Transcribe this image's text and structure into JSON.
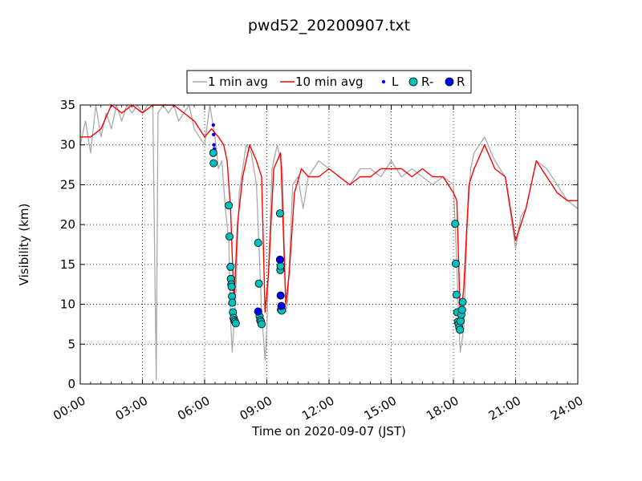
{
  "chart_data": {
    "type": "line",
    "title": "pwd52_20200907.txt",
    "xlabel": "Time on 2020-09-07 (JST)",
    "ylabel": "Visibility (km)",
    "xlim": [
      "00:00",
      "24:00"
    ],
    "ylim": [
      0,
      35
    ],
    "x_ticks": [
      "00:00",
      "03:00",
      "06:00",
      "09:00",
      "12:00",
      "15:00",
      "18:00",
      "21:00",
      "24:00"
    ],
    "y_ticks": [
      0,
      5,
      10,
      15,
      20,
      25,
      30,
      35
    ],
    "grid": true,
    "legend_placement": "top-center, outside plot",
    "series": [
      {
        "name": "1 min avg",
        "style": "line",
        "color": "#a9a9a9",
        "x": [
          "00:00",
          "00:15",
          "00:30",
          "00:45",
          "01:00",
          "01:15",
          "01:30",
          "01:45",
          "02:00",
          "02:15",
          "02:30",
          "02:45",
          "03:00",
          "03:15",
          "03:30",
          "03:40",
          "03:45",
          "04:00",
          "04:15",
          "04:30",
          "04:45",
          "05:00",
          "05:15",
          "05:30",
          "05:45",
          "06:00",
          "06:15",
          "06:30",
          "06:40",
          "06:50",
          "07:00",
          "07:10",
          "07:15",
          "07:20",
          "07:30",
          "07:40",
          "07:50",
          "08:00",
          "08:15",
          "08:30",
          "08:45",
          "08:55",
          "09:00",
          "09:05",
          "09:15",
          "09:30",
          "09:45",
          "09:55",
          "10:00",
          "10:05",
          "10:15",
          "10:30",
          "10:45",
          "11:00",
          "11:30",
          "12:00",
          "12:30",
          "13:00",
          "13:30",
          "14:00",
          "14:30",
          "15:00",
          "15:30",
          "16:00",
          "16:30",
          "17:00",
          "17:30",
          "18:00",
          "18:10",
          "18:15",
          "18:20",
          "18:30",
          "18:40",
          "18:50",
          "19:00",
          "19:30",
          "20:00",
          "20:30",
          "21:00",
          "21:15",
          "21:30",
          "22:00",
          "22:30",
          "23:00",
          "23:30",
          "24:00"
        ],
        "y": [
          30,
          33,
          29,
          35,
          31,
          34,
          32,
          35,
          33,
          35,
          34,
          35,
          34,
          35,
          35,
          0.5,
          34,
          35,
          34,
          35,
          33,
          34,
          35,
          32,
          31,
          30,
          35,
          31,
          27,
          28,
          22,
          18,
          8,
          4,
          11,
          24,
          27,
          30,
          29,
          25,
          9,
          3,
          7,
          15,
          27,
          30,
          27,
          9,
          10,
          15,
          25,
          26,
          22,
          26,
          28,
          27,
          26,
          25,
          27,
          27,
          26,
          28,
          26,
          27,
          26,
          25,
          26,
          25,
          15,
          8,
          4,
          7,
          20,
          27,
          29,
          31,
          28,
          26,
          17,
          21,
          22,
          28,
          27,
          25,
          23,
          22
        ]
      },
      {
        "name": "10 min avg",
        "style": "line",
        "color": "#ff0000",
        "x": [
          "00:00",
          "00:30",
          "01:00",
          "01:30",
          "02:00",
          "02:30",
          "03:00",
          "03:30",
          "04:00",
          "04:30",
          "05:00",
          "05:30",
          "06:00",
          "06:20",
          "06:40",
          "06:55",
          "07:05",
          "07:15",
          "07:25",
          "07:35",
          "07:50",
          "08:10",
          "08:30",
          "08:45",
          "08:55",
          "09:05",
          "09:20",
          "09:40",
          "09:55",
          "10:05",
          "10:20",
          "10:40",
          "11:00",
          "11:30",
          "12:00",
          "12:30",
          "13:00",
          "13:30",
          "14:00",
          "14:30",
          "15:00",
          "15:30",
          "16:00",
          "16:30",
          "17:00",
          "17:30",
          "18:00",
          "18:10",
          "18:20",
          "18:30",
          "18:45",
          "19:00",
          "19:30",
          "20:00",
          "20:30",
          "21:00",
          "21:15",
          "21:30",
          "22:00",
          "22:30",
          "23:00",
          "23:30",
          "24:00"
        ],
        "y": [
          31,
          31,
          32,
          35,
          34,
          35,
          34,
          35,
          35,
          35,
          34,
          33,
          31,
          32,
          31,
          30,
          28,
          22,
          10,
          20,
          26,
          30,
          28,
          26,
          9,
          14,
          27,
          29,
          10,
          14,
          24,
          27,
          26,
          26,
          27,
          26,
          25,
          26,
          26,
          27,
          27,
          27,
          26,
          27,
          26,
          26,
          24,
          23,
          8,
          12,
          25,
          27,
          30,
          27,
          26,
          18,
          20,
          22,
          28,
          26,
          24,
          23,
          23
        ]
      },
      {
        "name": "L",
        "style": "marker",
        "marker": "small-dot",
        "color": "#0000ff",
        "x": [
          "06:25",
          "06:26",
          "06:27",
          "06:28"
        ],
        "y": [
          32.5,
          31.3,
          30.0,
          29.5
        ]
      },
      {
        "name": "R-",
        "style": "marker",
        "marker": "circle",
        "color": "#00bfbf",
        "x": [
          "06:25",
          "06:26",
          "07:10",
          "07:12",
          "07:15",
          "07:16",
          "07:17",
          "07:18",
          "07:19",
          "07:20",
          "07:22",
          "07:24",
          "07:26",
          "07:28",
          "07:30",
          "08:35",
          "08:37",
          "08:39",
          "08:41",
          "08:43",
          "08:45",
          "09:38",
          "09:39",
          "09:40",
          "09:41",
          "09:42",
          "09:43",
          "18:05",
          "18:07",
          "18:09",
          "18:11",
          "18:13",
          "18:15",
          "18:17",
          "18:19",
          "18:21",
          "18:23",
          "18:25",
          "18:27"
        ],
        "y": [
          29.0,
          27.7,
          22.4,
          18.5,
          14.7,
          13.2,
          12.5,
          12.2,
          11.0,
          10.2,
          9.0,
          8.3,
          8.0,
          7.8,
          7.6,
          17.7,
          12.6,
          8.5,
          8.0,
          7.8,
          7.5,
          21.4,
          14.3,
          14.8,
          9.3,
          9.5,
          9.2,
          20.1,
          15.1,
          11.2,
          9.0,
          7.8,
          7.5,
          7.1,
          6.8,
          7.9,
          8.7,
          9.3,
          10.3
        ]
      },
      {
        "name": "R",
        "style": "marker",
        "marker": "circle",
        "color": "#0000ff",
        "x": [
          "08:35",
          "09:38",
          "09:40",
          "09:42"
        ],
        "y": [
          9.1,
          15.6,
          11.1,
          9.8
        ]
      }
    ]
  }
}
